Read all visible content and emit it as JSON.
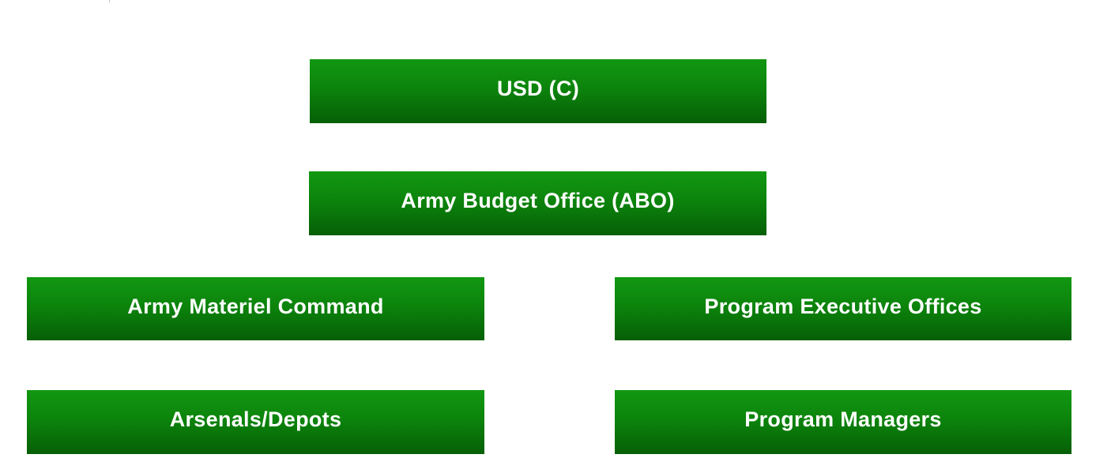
{
  "diagram": {
    "type": "organization-chart",
    "box_color": "#0e8f0e",
    "text_color": "#ffffff",
    "nodes": {
      "usd": {
        "label": "USD (C)"
      },
      "abo": {
        "label": "Army Budget Office (ABO)"
      },
      "amc": {
        "label": "Army Materiel Command"
      },
      "peo": {
        "label": "Program Executive Offices"
      },
      "arsenals": {
        "label": "Arsenals/Depots"
      },
      "pm": {
        "label": "Program Managers"
      }
    }
  }
}
